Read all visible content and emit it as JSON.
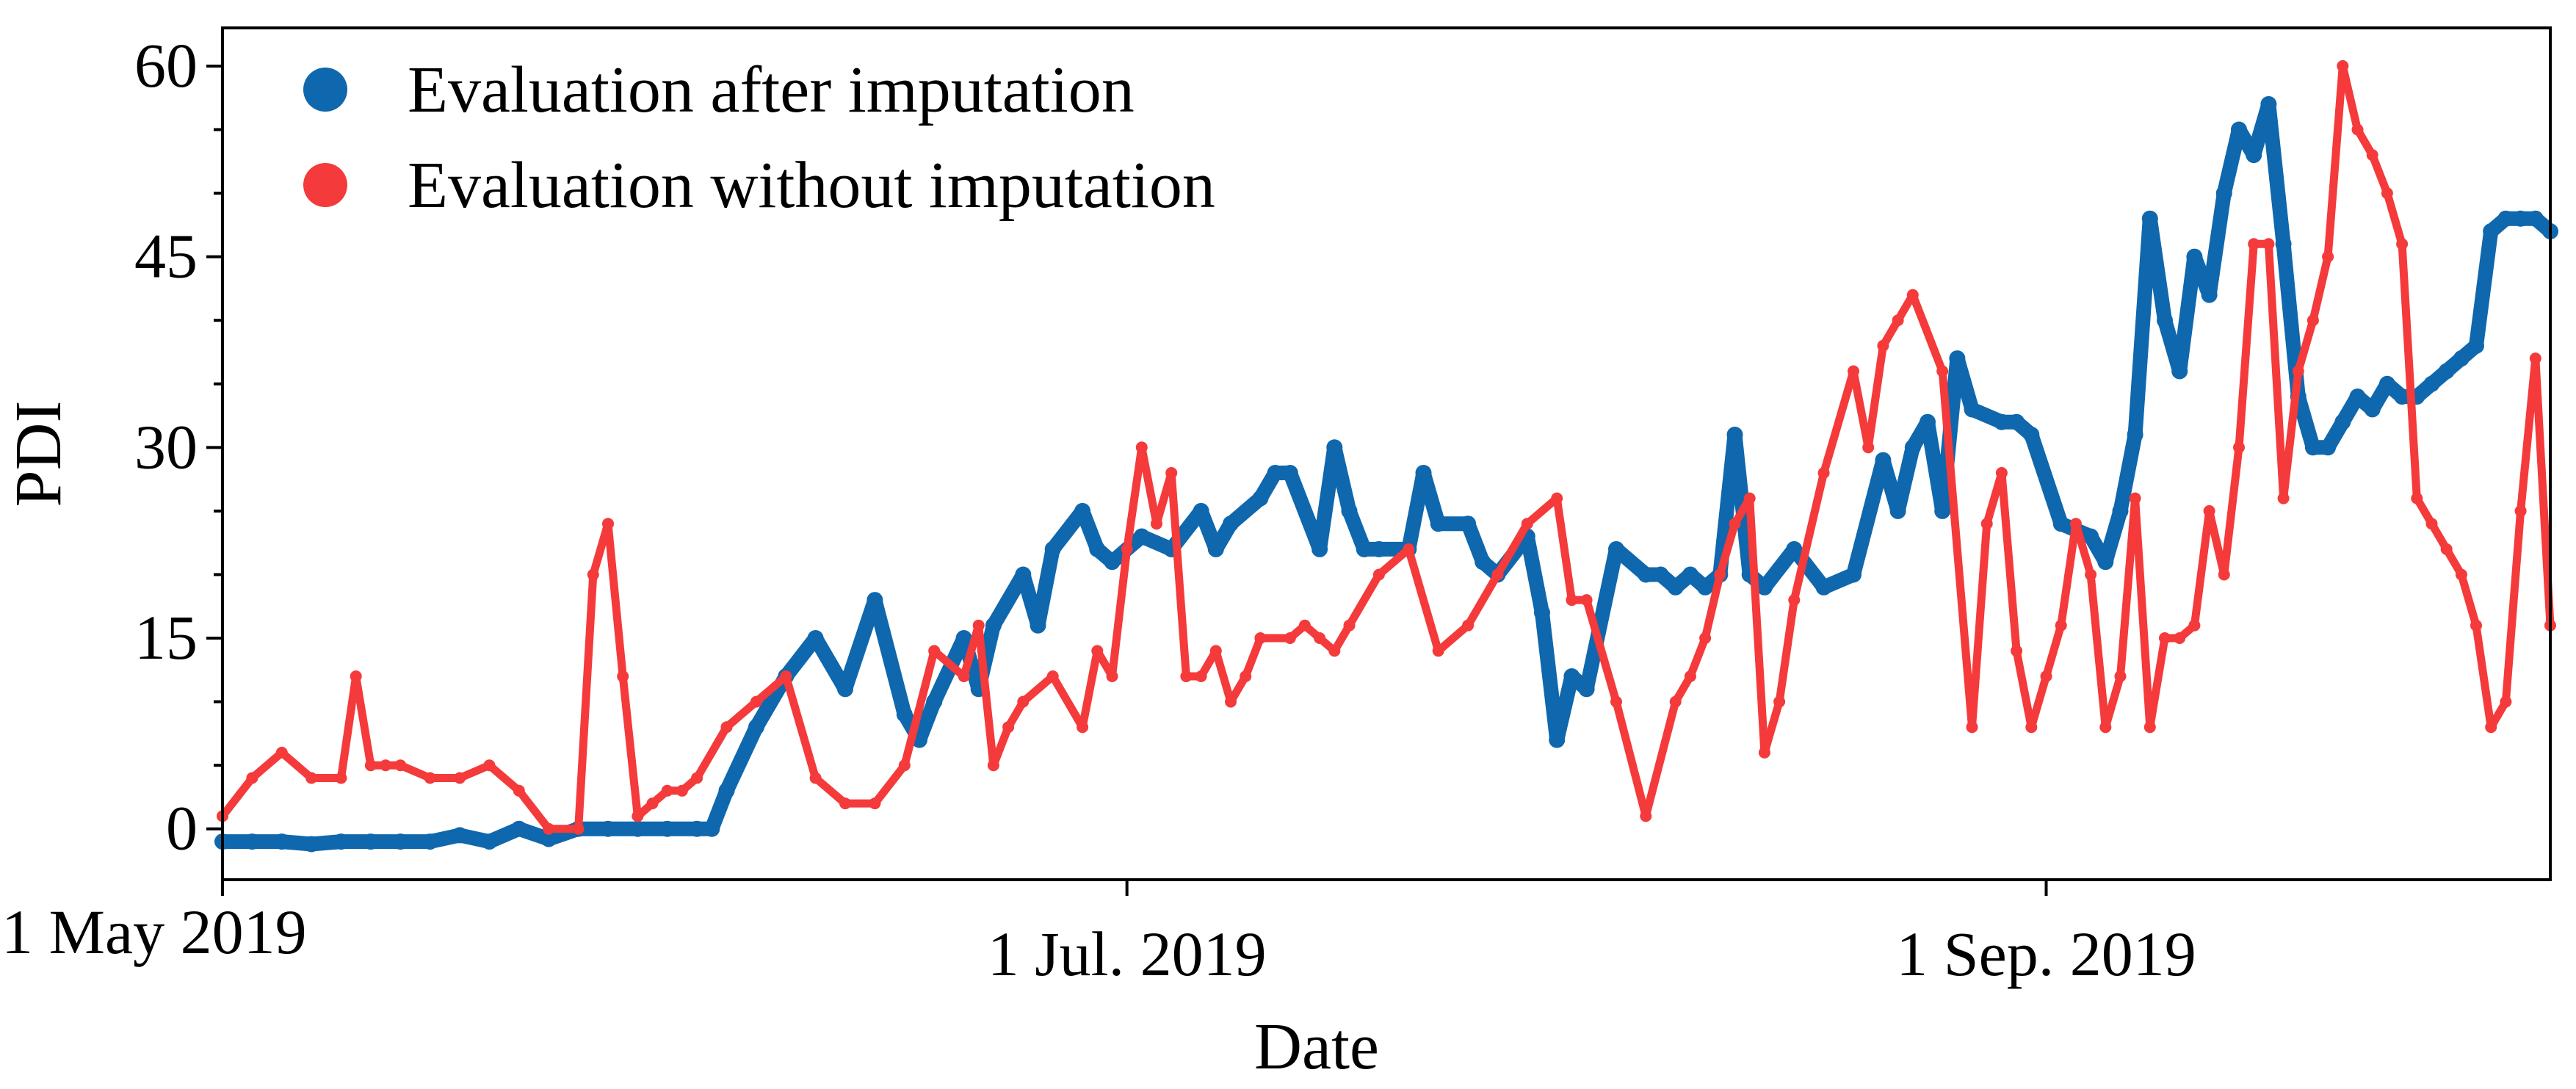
{
  "chart_data": {
    "type": "scatter",
    "title": "",
    "xlabel": "Date",
    "ylabel": "PDI",
    "xlim": [
      0,
      157
    ],
    "ylim": [
      -4,
      63
    ],
    "grid": false,
    "legend_position": "top-left",
    "x_unit": "days since 1 May 2019",
    "x_ticks": [
      {
        "value": 0,
        "label": "1 May 2019"
      },
      {
        "value": 61,
        "label": "1 Jul. 2019"
      },
      {
        "value": 123,
        "label": "1 Sep. 2019"
      }
    ],
    "y_ticks": [
      {
        "value": 0,
        "label": "0"
      },
      {
        "value": 15,
        "label": "15"
      },
      {
        "value": 30,
        "label": "30"
      },
      {
        "value": 45,
        "label": "45"
      },
      {
        "value": 60,
        "label": "60"
      }
    ],
    "series": [
      {
        "name": "Evaluation after imputation",
        "color": "#0f67ad",
        "x": [
          0,
          2,
          4,
          6,
          8,
          10,
          12,
          14,
          16,
          18,
          20,
          22,
          24,
          26,
          28,
          30,
          32,
          33,
          34,
          36,
          38,
          40,
          42,
          44,
          46,
          47,
          48,
          50,
          51,
          52,
          54,
          55,
          56,
          58,
          59,
          60,
          62,
          64,
          66,
          67,
          68,
          70,
          71,
          72,
          74,
          75,
          76,
          77,
          78,
          80,
          81,
          82,
          84,
          85,
          86,
          88,
          89,
          90,
          91,
          92,
          94,
          96,
          97,
          98,
          99,
          100,
          101,
          102,
          103,
          104,
          106,
          108,
          110,
          112,
          113,
          114,
          115,
          116,
          117,
          118,
          120,
          121,
          122,
          124,
          126,
          127,
          128,
          129,
          130,
          131,
          132,
          133,
          134,
          135,
          136,
          137,
          138,
          139,
          140,
          141,
          142,
          143,
          144,
          145,
          146,
          147,
          148,
          149,
          150,
          151,
          152,
          153,
          154,
          155,
          156,
          157
        ],
        "y": [
          -1,
          -1,
          -1,
          -1.2,
          -1,
          -1,
          -1,
          -1,
          -0.5,
          -1,
          0,
          -0.8,
          0,
          0,
          0,
          0,
          0,
          0,
          3,
          8,
          12,
          15,
          11,
          18,
          9,
          7,
          10,
          15,
          11,
          16,
          20,
          16,
          22,
          25,
          22,
          21,
          23,
          22,
          25,
          22,
          24,
          26,
          28,
          28,
          22,
          30,
          25,
          22,
          22,
          22,
          28,
          24,
          24,
          21,
          20,
          23,
          17,
          7,
          12,
          11,
          22,
          20,
          20,
          19,
          20,
          19,
          20,
          31,
          20,
          19,
          22,
          19,
          20,
          29,
          25,
          30,
          32,
          25,
          37,
          33,
          32,
          32,
          31,
          24,
          23,
          21,
          25,
          31,
          48,
          40,
          36,
          45,
          42,
          50,
          55,
          53,
          57,
          46,
          34,
          30,
          30,
          32,
          34,
          33,
          35,
          34,
          34,
          35,
          36,
          37,
          38,
          47,
          48,
          48,
          48,
          47
        ],
        "marker": "circle"
      },
      {
        "name": "Evaluation without imputation",
        "color": "#f43a3a",
        "x": [
          0,
          2,
          4,
          6,
          8,
          9,
          10,
          11,
          12,
          14,
          16,
          18,
          20,
          22,
          24,
          25,
          26,
          27,
          28,
          29,
          30,
          31,
          32,
          34,
          36,
          38,
          40,
          42,
          44,
          46,
          48,
          50,
          51,
          52,
          53,
          54,
          56,
          58,
          59,
          60,
          61,
          62,
          63,
          64,
          65,
          66,
          67,
          68,
          69,
          70,
          72,
          73,
          74,
          75,
          76,
          78,
          80,
          82,
          84,
          86,
          88,
          90,
          91,
          92,
          94,
          96,
          98,
          99,
          100,
          101,
          102,
          103,
          104,
          105,
          106,
          108,
          110,
          111,
          112,
          113,
          114,
          116,
          118,
          119,
          120,
          121,
          122,
          123,
          124,
          125,
          126,
          127,
          128,
          129,
          130,
          131,
          132,
          133,
          134,
          135,
          136,
          137,
          138,
          139,
          140,
          141,
          142,
          143,
          144,
          145,
          146,
          147,
          148,
          149,
          150,
          151,
          152,
          153,
          154,
          155,
          156,
          157
        ],
        "y": [
          1,
          4,
          6,
          4,
          4,
          12,
          5,
          5,
          5,
          4,
          4,
          5,
          3,
          0,
          0,
          20,
          24,
          12,
          1,
          2,
          3,
          3,
          4,
          8,
          10,
          12,
          4,
          2,
          2,
          5,
          14,
          12,
          16,
          5,
          8,
          10,
          12,
          8,
          14,
          12,
          22,
          30,
          24,
          28,
          12,
          12,
          14,
          10,
          12,
          15,
          15,
          16,
          15,
          14,
          16,
          20,
          22,
          14,
          16,
          20,
          24,
          26,
          18,
          18,
          10,
          1,
          10,
          12,
          15,
          20,
          24,
          26,
          6,
          10,
          18,
          28,
          36,
          30,
          38,
          40,
          42,
          36,
          8,
          24,
          28,
          14,
          8,
          12,
          16,
          24,
          20,
          8,
          12,
          26,
          8,
          15,
          15,
          16,
          25,
          20,
          30,
          46,
          46,
          26,
          36,
          40,
          45,
          60,
          55,
          53,
          50,
          46,
          26,
          24,
          22,
          20,
          16,
          8,
          10,
          25,
          37,
          16
        ]
      }
    ]
  }
}
